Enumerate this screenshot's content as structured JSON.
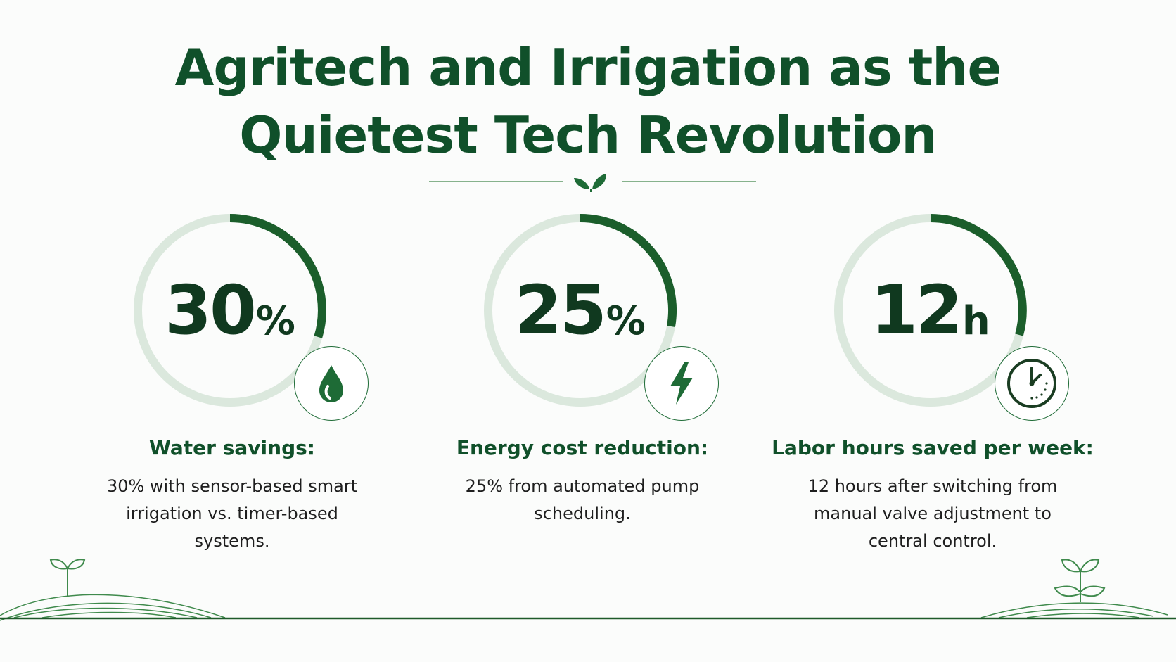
{
  "header": {
    "title_line1": "Agritech and Irrigation as the",
    "title_line2": "Quietest Tech Revolution"
  },
  "colors": {
    "primary": "#10502a",
    "ring_active": "#1b5e2b",
    "ring_track": "#dbe8dd",
    "text": "#1e1e1e"
  },
  "stats": [
    {
      "value": "30",
      "unit": "%",
      "progress": 0.3,
      "icon": "water-drop-icon",
      "label": "Water savings:",
      "description": "30% with sensor-based smart irrigation vs. timer-based systems."
    },
    {
      "value": "25",
      "unit": "%",
      "progress": 0.25,
      "icon": "lightning-bolt-icon",
      "label": "Energy cost reduction:",
      "description": "25% from automated pump scheduling."
    },
    {
      "value": "12",
      "unit": "h",
      "progress": 0.33,
      "icon": "clock-icon",
      "label": "Labor hours saved per week:",
      "description": "12 hours after switching from manual valve adjustment to central control."
    }
  ]
}
